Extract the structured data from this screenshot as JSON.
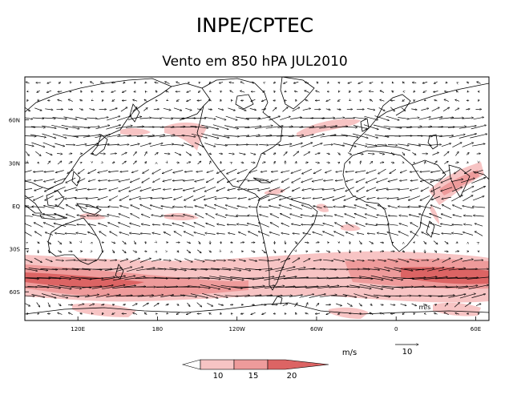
{
  "header": {
    "institution": "INPE/CPTEC",
    "title": "Vento em 850 hPA JUL2010"
  },
  "map": {
    "latitude_labels": [
      "60N",
      "30N",
      "EQ",
      "30S",
      "60S"
    ],
    "latitudes_deg": [
      60,
      30,
      0,
      -30,
      -60
    ],
    "longitude_labels": [
      "120E",
      "180",
      "120W",
      "60W",
      "0",
      "60E"
    ],
    "longitudes_deg": [
      120,
      180,
      240,
      300,
      360,
      420
    ],
    "lon_range": [
      80,
      430
    ],
    "lat_range": [
      -80,
      90
    ],
    "vector_units_label": "m/s",
    "reference_vector_value": "10"
  },
  "colorbar": {
    "units_label": "m/s",
    "ticks": [
      "10",
      "15",
      "20"
    ],
    "colors": [
      "#ffffff",
      "#f7c4c4",
      "#ee9b9b",
      "#dc6464"
    ]
  },
  "colors": {
    "shade_light": "#f7c4c4",
    "shade_mid": "#ee9b9b",
    "shade_dark": "#dc6464",
    "coast": "#000000"
  }
}
